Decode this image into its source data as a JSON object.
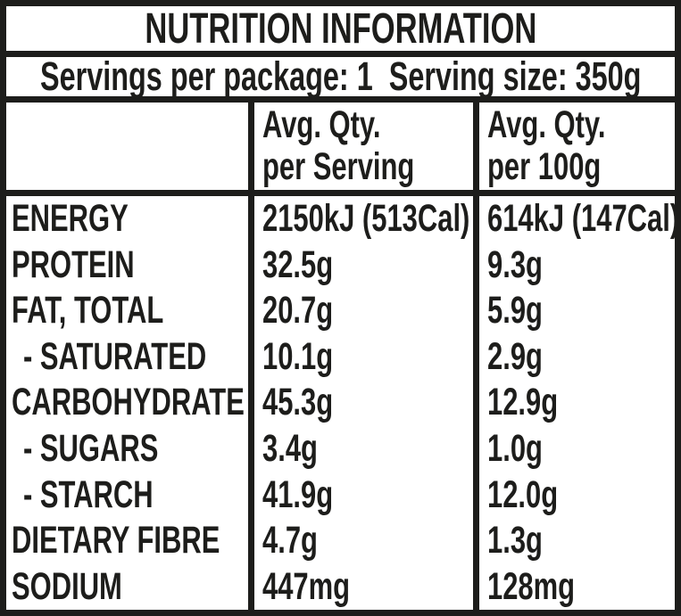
{
  "label": {
    "title": "NUTRITION INFORMATION",
    "servings_line": "Servings per package: 1  Serving size: 350g",
    "columns": [
      {
        "line1": "",
        "line2": ""
      },
      {
        "line1": "Avg. Qty.",
        "line2": "per Serving"
      },
      {
        "line1": "Avg. Qty.",
        "line2": "per 100g"
      }
    ],
    "rows": [
      {
        "nutrient": "ENERGY",
        "per_serving": "2150kJ (513Cal)",
        "per_100g": "614kJ (147Cal)"
      },
      {
        "nutrient": "PROTEIN",
        "per_serving": "32.5g",
        "per_100g": "9.3g"
      },
      {
        "nutrient": "FAT, TOTAL",
        "per_serving": "20.7g",
        "per_100g": "5.9g"
      },
      {
        "nutrient": "- SATURATED",
        "per_serving": "10.1g",
        "per_100g": "2.9g"
      },
      {
        "nutrient": "CARBOHYDRATE",
        "per_serving": "45.3g",
        "per_100g": "12.9g"
      },
      {
        "nutrient": "- SUGARS",
        "per_serving": "3.4g",
        "per_100g": "1.0g"
      },
      {
        "nutrient": "- STARCH",
        "per_serving": "41.9g",
        "per_100g": "12.0g"
      },
      {
        "nutrient": "DIETARY FIBRE",
        "per_serving": "4.7g",
        "per_100g": "1.3g"
      },
      {
        "nutrient": "SODIUM",
        "per_serving": "447mg",
        "per_100g": "128mg"
      }
    ],
    "colors": {
      "text": "#1d1d1b",
      "border": "#1d1d1b",
      "background": "#ffffff"
    }
  }
}
